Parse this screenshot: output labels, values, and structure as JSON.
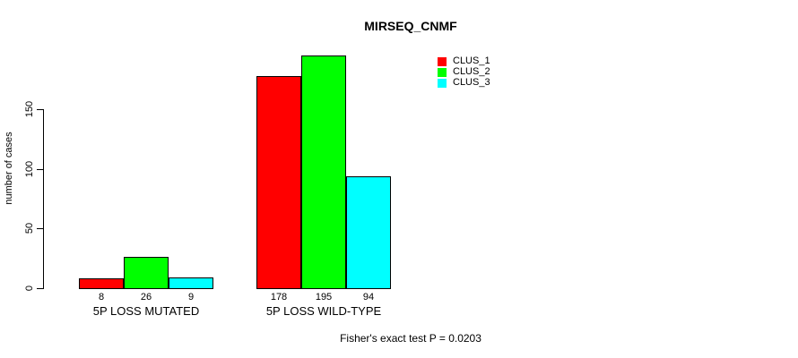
{
  "chart_data": {
    "type": "bar",
    "title": "MIRSEQ_CNMF",
    "xlabel": "",
    "ylabel": "number of cases",
    "categories": [
      "5P LOSS MUTATED",
      "5P LOSS WILD-TYPE"
    ],
    "series": [
      {
        "name": "CLUS_1",
        "color": "#ff0000",
        "values": [
          8,
          178
        ]
      },
      {
        "name": "CLUS_2",
        "color": "#00ff00",
        "values": [
          26,
          195
        ]
      },
      {
        "name": "CLUS_3",
        "color": "#00ffff",
        "values": [
          9,
          94
        ]
      }
    ],
    "yticks": [
      0,
      50,
      100,
      150
    ],
    "ylim": [
      0,
      200
    ],
    "grid": false,
    "bar_value_labels": true,
    "legend_position": "top-right",
    "bar_border_color": "#000000",
    "annotation": "Fisher's exact test P = 0.0203"
  }
}
